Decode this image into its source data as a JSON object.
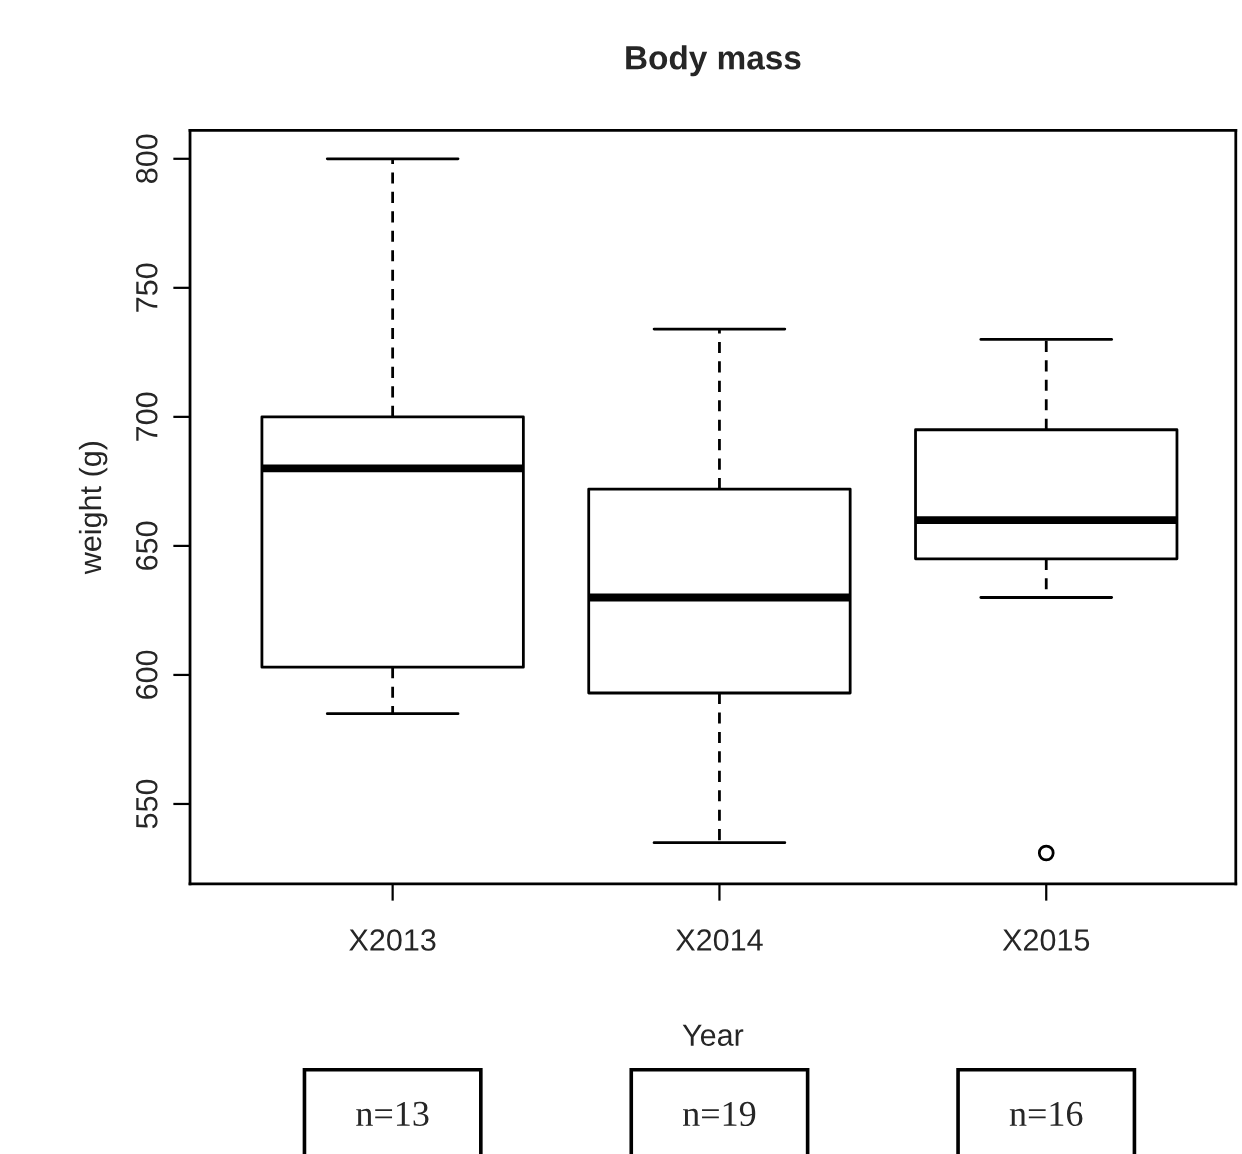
{
  "chart_data": {
    "type": "box",
    "title": "Body mass",
    "xlabel": "Year",
    "ylabel": "weight (g)",
    "categories": [
      "X2013",
      "X2014",
      "X2015"
    ],
    "boxes": [
      {
        "low": 585,
        "q1": 603,
        "median": 680,
        "q3": 700,
        "high": 800
      },
      {
        "low": 535,
        "q1": 593,
        "median": 630,
        "q3": 672,
        "high": 734
      },
      {
        "low": 630,
        "q1": 645,
        "median": 660,
        "q3": 695,
        "high": 730,
        "outliers": [
          531
        ]
      }
    ],
    "ylim": [
      519,
      811
    ],
    "yticks": [
      550,
      600,
      650,
      700,
      750,
      800
    ],
    "annotations": [
      "n=13",
      "n=19",
      "n=16"
    ],
    "grid": false
  }
}
